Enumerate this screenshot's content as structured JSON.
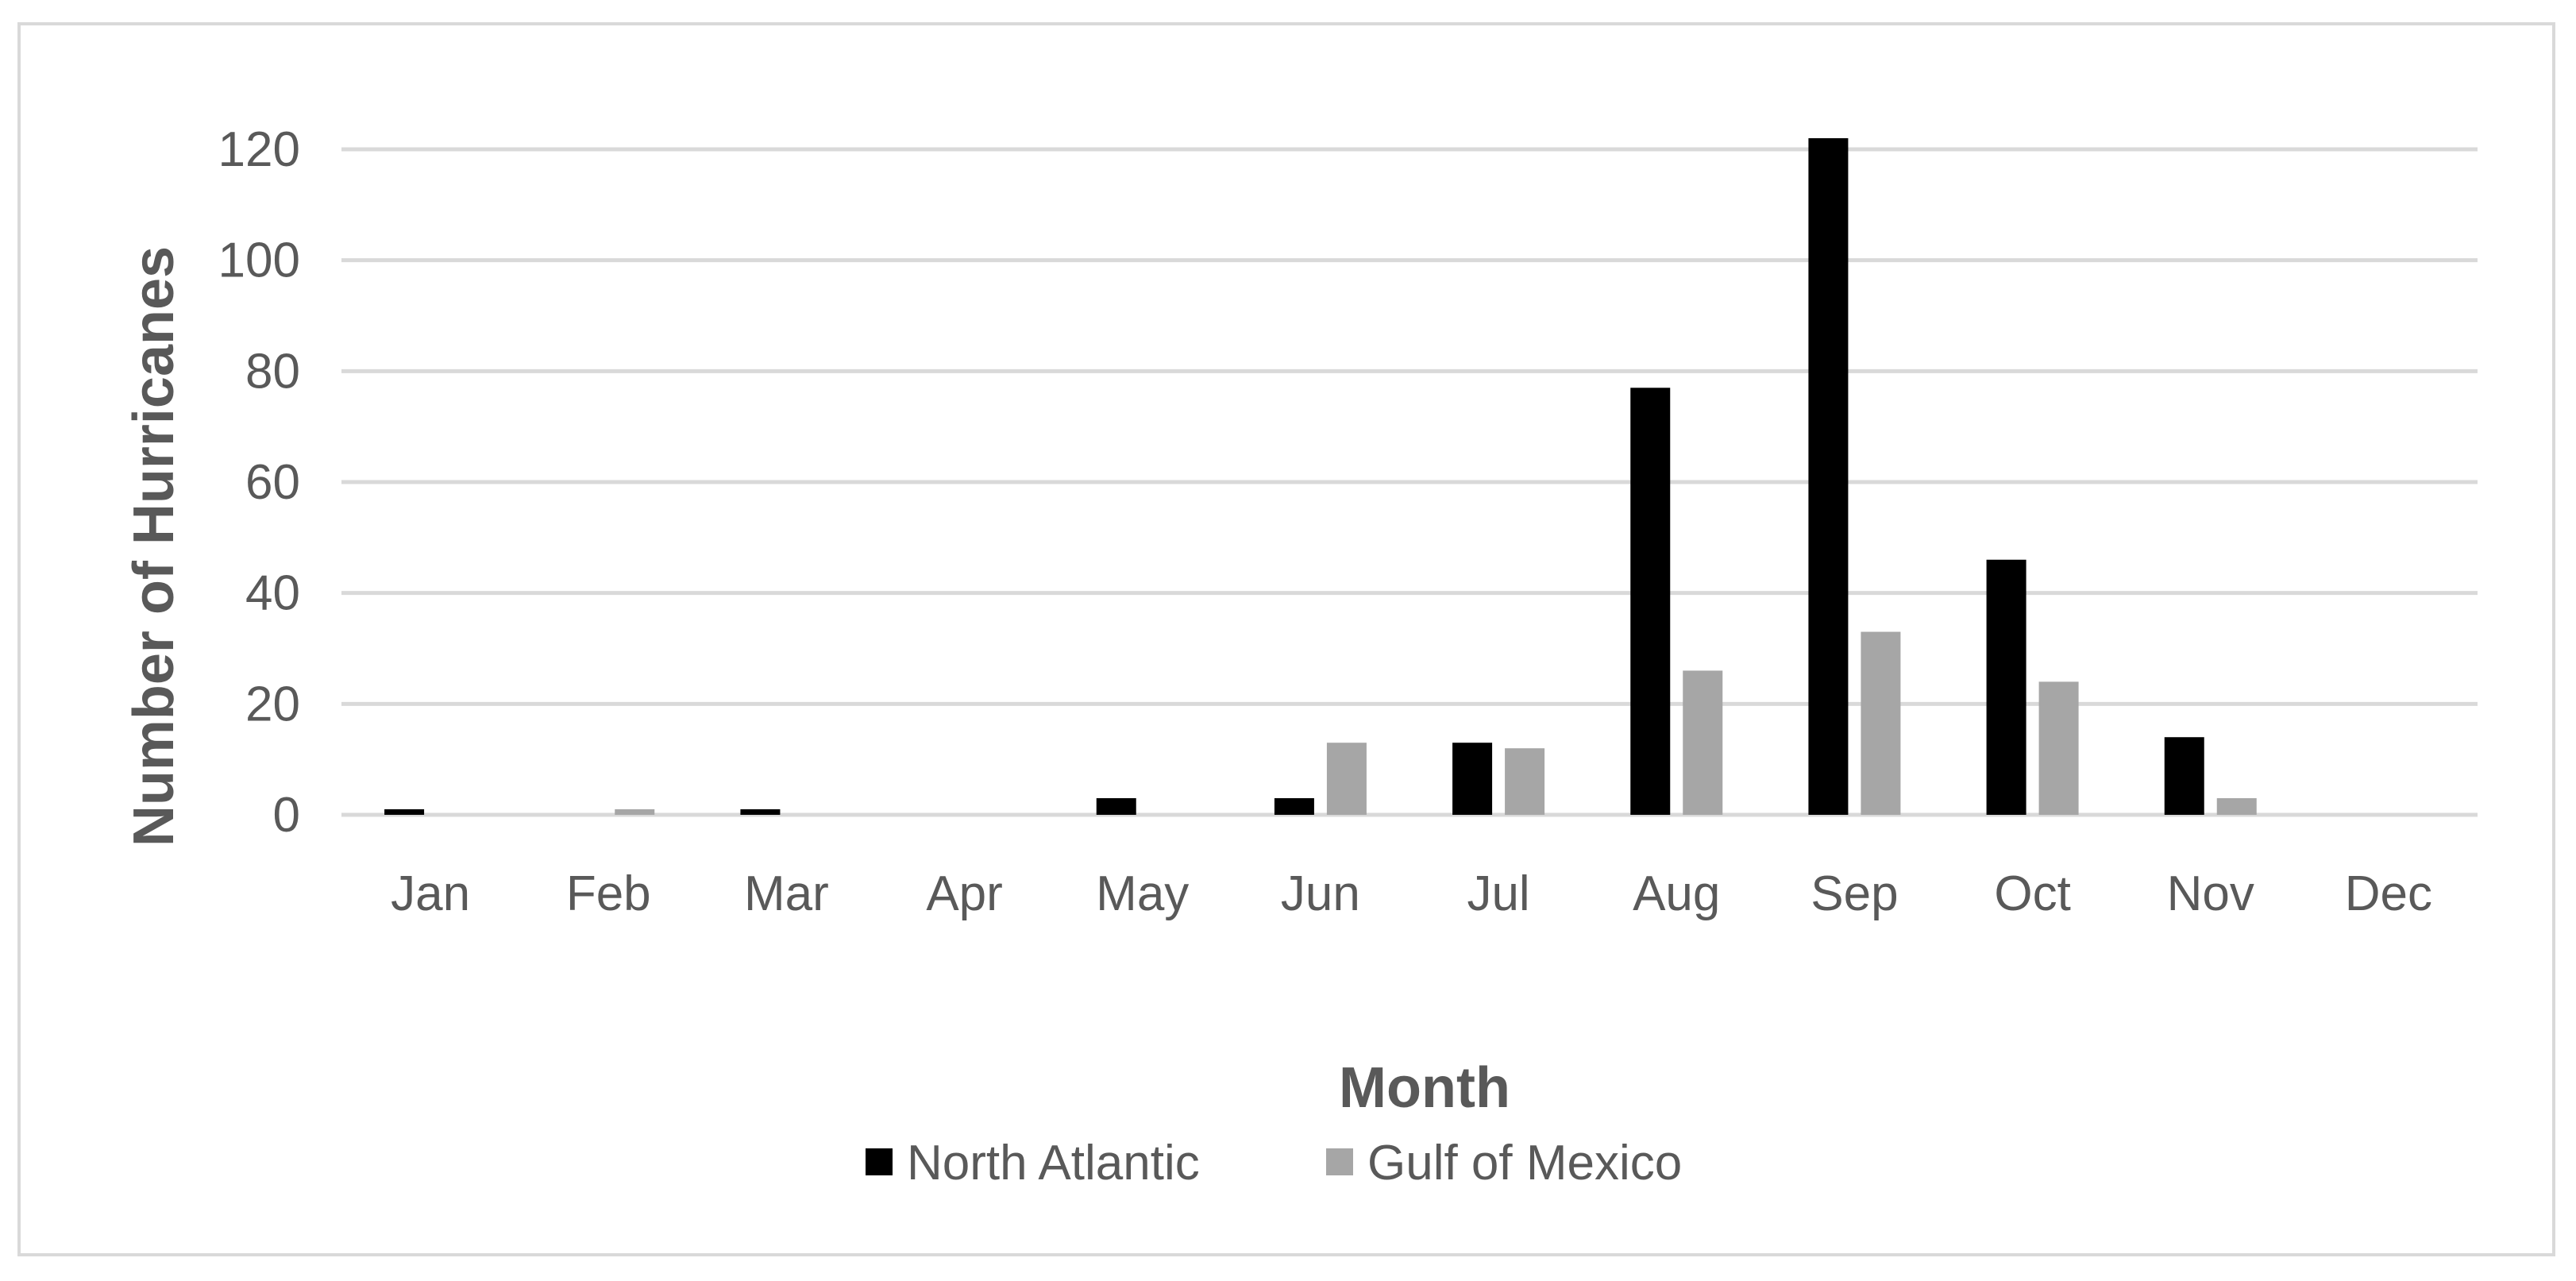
{
  "chart_data": {
    "type": "bar",
    "title": "",
    "xlabel": "Month",
    "ylabel": "Number of Hurricanes",
    "categories": [
      "Jan",
      "Feb",
      "Mar",
      "Apr",
      "May",
      "Jun",
      "Jul",
      "Aug",
      "Sep",
      "Oct",
      "Nov",
      "Dec"
    ],
    "series": [
      {
        "name": "North Atlantic",
        "color": "#000000",
        "values": [
          1,
          0,
          1,
          0,
          3,
          3,
          13,
          77,
          122,
          46,
          14,
          0
        ]
      },
      {
        "name": "Gulf of Mexico",
        "color": "#a6a6a6",
        "values": [
          0,
          1,
          0,
          0,
          0,
          13,
          12,
          26,
          33,
          24,
          3,
          0
        ]
      }
    ],
    "ylim": [
      0,
      120
    ],
    "yticks": [
      0,
      20,
      40,
      60,
      80,
      100,
      120
    ],
    "grid": true,
    "legend_position": "bottom"
  }
}
